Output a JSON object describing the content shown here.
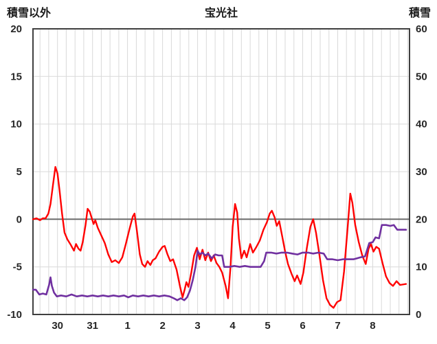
{
  "header": {
    "left_label": "積雪以外",
    "title": "宝光社",
    "right_label": "積雪"
  },
  "chart_data": {
    "type": "line",
    "title": "宝光社",
    "grid": true,
    "legend": "none",
    "style": {
      "background": "#ffffff",
      "grid_color": "#d9d9d9",
      "zero_line_color": "#6b6b6b",
      "frame_color": "#3f3f3f",
      "tick_color": "#262626",
      "red": "#ff0000",
      "purple": "#7030a0"
    },
    "left_axis": {
      "label": "積雪以外",
      "min": -10,
      "max": 20,
      "tick_values": [
        20,
        15,
        10,
        5,
        0,
        -5,
        -10
      ],
      "tick_labels": [
        "20",
        "15",
        "10",
        "5",
        "0",
        "-5",
        "-10"
      ]
    },
    "right_axis": {
      "label": "積雪",
      "min": 0,
      "max": 60,
      "tick_values": [
        60,
        50,
        40,
        30,
        20,
        10,
        0
      ],
      "tick_labels": [
        "60",
        "50",
        "40",
        "30",
        "20",
        "10",
        "0"
      ]
    },
    "x_axis": {
      "min": -0.2,
      "max": 10.55,
      "gridline_interval": 0.25,
      "day_labels": [
        "30",
        "31",
        "1",
        "2",
        "3",
        "4",
        "5",
        "6",
        "7",
        "8"
      ],
      "label_positions": [
        0.5,
        1.5,
        2.5,
        3.5,
        4.5,
        5.5,
        6.5,
        7.5,
        8.5,
        9.5
      ]
    },
    "series": [
      {
        "name": "積雪以外",
        "id": "non-snow-red",
        "axis": "left",
        "color": "#ff0000",
        "width": 2.4,
        "points": [
          [
            -0.2,
            0.0
          ],
          [
            -0.1,
            0.1
          ],
          [
            0.0,
            -0.1
          ],
          [
            0.08,
            0.1
          ],
          [
            0.16,
            0.1
          ],
          [
            0.24,
            0.6
          ],
          [
            0.3,
            1.6
          ],
          [
            0.37,
            3.6
          ],
          [
            0.44,
            5.5
          ],
          [
            0.5,
            4.8
          ],
          [
            0.56,
            3.0
          ],
          [
            0.63,
            0.6
          ],
          [
            0.7,
            -1.4
          ],
          [
            0.78,
            -2.1
          ],
          [
            0.88,
            -2.7
          ],
          [
            0.97,
            -3.3
          ],
          [
            1.03,
            -2.6
          ],
          [
            1.1,
            -3.1
          ],
          [
            1.16,
            -3.3
          ],
          [
            1.22,
            -2.4
          ],
          [
            1.3,
            -0.6
          ],
          [
            1.36,
            1.1
          ],
          [
            1.42,
            0.8
          ],
          [
            1.48,
            0.1
          ],
          [
            1.53,
            -0.5
          ],
          [
            1.58,
            -0.1
          ],
          [
            1.65,
            -0.9
          ],
          [
            1.75,
            -1.7
          ],
          [
            1.85,
            -2.5
          ],
          [
            1.95,
            -3.7
          ],
          [
            2.05,
            -4.5
          ],
          [
            2.15,
            -4.3
          ],
          [
            2.25,
            -4.6
          ],
          [
            2.35,
            -4.0
          ],
          [
            2.45,
            -2.6
          ],
          [
            2.55,
            -1.1
          ],
          [
            2.65,
            0.3
          ],
          [
            2.7,
            0.6
          ],
          [
            2.77,
            -1.3
          ],
          [
            2.85,
            -3.7
          ],
          [
            2.92,
            -4.7
          ],
          [
            3.0,
            -5.0
          ],
          [
            3.07,
            -4.4
          ],
          [
            3.15,
            -4.8
          ],
          [
            3.22,
            -4.3
          ],
          [
            3.3,
            -4.1
          ],
          [
            3.4,
            -3.4
          ],
          [
            3.5,
            -2.9
          ],
          [
            3.56,
            -2.8
          ],
          [
            3.64,
            -3.7
          ],
          [
            3.72,
            -4.4
          ],
          [
            3.8,
            -4.2
          ],
          [
            3.9,
            -5.3
          ],
          [
            4.0,
            -7.1
          ],
          [
            4.07,
            -8.2
          ],
          [
            4.13,
            -7.4
          ],
          [
            4.18,
            -6.6
          ],
          [
            4.24,
            -7.1
          ],
          [
            4.32,
            -5.6
          ],
          [
            4.4,
            -3.8
          ],
          [
            4.48,
            -3.0
          ],
          [
            4.56,
            -4.2
          ],
          [
            4.64,
            -3.2
          ],
          [
            4.72,
            -4.3
          ],
          [
            4.8,
            -3.5
          ],
          [
            4.88,
            -4.4
          ],
          [
            4.96,
            -3.8
          ],
          [
            5.04,
            -4.6
          ],
          [
            5.12,
            -5.0
          ],
          [
            5.2,
            -5.6
          ],
          [
            5.3,
            -7.0
          ],
          [
            5.37,
            -8.3
          ],
          [
            5.44,
            -5.0
          ],
          [
            5.5,
            -0.8
          ],
          [
            5.57,
            1.6
          ],
          [
            5.63,
            0.7
          ],
          [
            5.68,
            -2.0
          ],
          [
            5.75,
            -4.1
          ],
          [
            5.83,
            -3.3
          ],
          [
            5.9,
            -4.0
          ],
          [
            6.0,
            -2.6
          ],
          [
            6.08,
            -3.5
          ],
          [
            6.18,
            -2.9
          ],
          [
            6.28,
            -2.2
          ],
          [
            6.38,
            -1.1
          ],
          [
            6.48,
            -0.3
          ],
          [
            6.56,
            0.6
          ],
          [
            6.62,
            0.9
          ],
          [
            6.7,
            0.2
          ],
          [
            6.76,
            -0.7
          ],
          [
            6.83,
            -0.2
          ],
          [
            6.92,
            -1.9
          ],
          [
            7.0,
            -3.4
          ],
          [
            7.08,
            -4.7
          ],
          [
            7.18,
            -5.7
          ],
          [
            7.27,
            -6.5
          ],
          [
            7.34,
            -5.9
          ],
          [
            7.44,
            -6.8
          ],
          [
            7.52,
            -5.6
          ],
          [
            7.62,
            -3.0
          ],
          [
            7.72,
            -0.8
          ],
          [
            7.8,
            0.0
          ],
          [
            7.88,
            -1.4
          ],
          [
            7.98,
            -3.8
          ],
          [
            8.08,
            -6.4
          ],
          [
            8.18,
            -8.3
          ],
          [
            8.28,
            -9.0
          ],
          [
            8.38,
            -9.3
          ],
          [
            8.48,
            -8.7
          ],
          [
            8.58,
            -8.5
          ],
          [
            8.68,
            -5.5
          ],
          [
            8.78,
            -1.0
          ],
          [
            8.86,
            2.7
          ],
          [
            8.92,
            1.7
          ],
          [
            9.0,
            -0.6
          ],
          [
            9.1,
            -2.4
          ],
          [
            9.2,
            -3.8
          ],
          [
            9.3,
            -4.7
          ],
          [
            9.38,
            -3.1
          ],
          [
            9.45,
            -2.6
          ],
          [
            9.52,
            -3.4
          ],
          [
            9.6,
            -2.9
          ],
          [
            9.68,
            -3.1
          ],
          [
            9.78,
            -4.6
          ],
          [
            9.88,
            -6.0
          ],
          [
            9.98,
            -6.7
          ],
          [
            10.08,
            -7.0
          ],
          [
            10.18,
            -6.5
          ],
          [
            10.28,
            -6.9
          ],
          [
            10.45,
            -6.8
          ]
        ]
      },
      {
        "name": "積雪",
        "id": "snow-depth-purple",
        "axis": "right",
        "color": "#7030a0",
        "width": 2.6,
        "points": [
          [
            -0.2,
            5.2
          ],
          [
            -0.12,
            5.2
          ],
          [
            -0.02,
            4.2
          ],
          [
            0.08,
            4.4
          ],
          [
            0.18,
            4.2
          ],
          [
            0.26,
            6.2
          ],
          [
            0.3,
            7.8
          ],
          [
            0.34,
            6.0
          ],
          [
            0.4,
            4.6
          ],
          [
            0.48,
            3.8
          ],
          [
            0.6,
            4.0
          ],
          [
            0.75,
            3.8
          ],
          [
            0.9,
            4.2
          ],
          [
            1.05,
            3.8
          ],
          [
            1.2,
            4.0
          ],
          [
            1.35,
            3.8
          ],
          [
            1.5,
            4.0
          ],
          [
            1.65,
            3.8
          ],
          [
            1.8,
            4.0
          ],
          [
            1.95,
            3.8
          ],
          [
            2.1,
            4.0
          ],
          [
            2.25,
            3.8
          ],
          [
            2.4,
            4.0
          ],
          [
            2.52,
            3.6
          ],
          [
            2.65,
            4.0
          ],
          [
            2.8,
            3.8
          ],
          [
            2.95,
            4.0
          ],
          [
            3.1,
            3.8
          ],
          [
            3.25,
            4.0
          ],
          [
            3.4,
            3.8
          ],
          [
            3.55,
            4.0
          ],
          [
            3.7,
            3.8
          ],
          [
            3.82,
            3.4
          ],
          [
            3.92,
            3.0
          ],
          [
            4.02,
            3.4
          ],
          [
            4.12,
            3.0
          ],
          [
            4.2,
            3.6
          ],
          [
            4.28,
            5.0
          ],
          [
            4.36,
            7.2
          ],
          [
            4.44,
            10.0
          ],
          [
            4.5,
            13.4
          ],
          [
            4.56,
            12.6
          ],
          [
            4.64,
            13.0
          ],
          [
            4.72,
            12.4
          ],
          [
            4.8,
            12.8
          ],
          [
            4.9,
            11.8
          ],
          [
            5.0,
            12.6
          ],
          [
            5.1,
            12.4
          ],
          [
            5.2,
            12.4
          ],
          [
            5.26,
            10.0
          ],
          [
            5.4,
            10.0
          ],
          [
            5.55,
            10.2
          ],
          [
            5.7,
            10.0
          ],
          [
            5.85,
            10.2
          ],
          [
            6.0,
            10.0
          ],
          [
            6.15,
            10.0
          ],
          [
            6.3,
            10.0
          ],
          [
            6.4,
            11.2
          ],
          [
            6.46,
            13.0
          ],
          [
            6.6,
            13.0
          ],
          [
            6.75,
            12.8
          ],
          [
            6.9,
            13.0
          ],
          [
            7.05,
            13.0
          ],
          [
            7.2,
            12.8
          ],
          [
            7.35,
            12.6
          ],
          [
            7.5,
            13.0
          ],
          [
            7.65,
            13.0
          ],
          [
            7.8,
            12.8
          ],
          [
            7.95,
            13.0
          ],
          [
            8.1,
            12.8
          ],
          [
            8.2,
            11.6
          ],
          [
            8.35,
            11.6
          ],
          [
            8.5,
            11.4
          ],
          [
            8.65,
            11.6
          ],
          [
            8.8,
            11.6
          ],
          [
            8.95,
            11.6
          ],
          [
            9.05,
            11.8
          ],
          [
            9.15,
            12.0
          ],
          [
            9.28,
            12.2
          ],
          [
            9.4,
            15.0
          ],
          [
            9.5,
            15.2
          ],
          [
            9.58,
            16.2
          ],
          [
            9.68,
            16.0
          ],
          [
            9.76,
            18.8
          ],
          [
            9.88,
            18.8
          ],
          [
            10.0,
            18.6
          ],
          [
            10.1,
            18.8
          ],
          [
            10.2,
            17.8
          ],
          [
            10.35,
            17.8
          ],
          [
            10.45,
            17.8
          ]
        ]
      }
    ]
  }
}
